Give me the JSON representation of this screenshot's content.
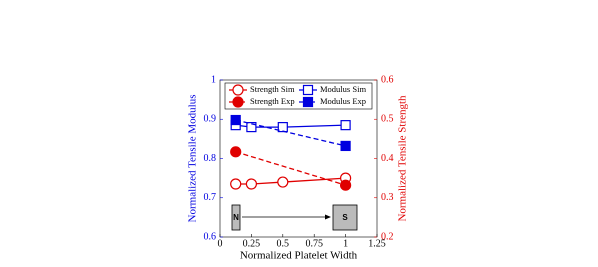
{
  "chart_data": {
    "type": "line",
    "x_label": "Normalized Platelet Width",
    "y_label": "Normalized Tensile Modulus",
    "y2_label": "Normalized Tensile Strength",
    "annotations": [
      "N",
      "S"
    ],
    "xlim": [
      0,
      1.25
    ],
    "xticks": [
      0,
      0.25,
      0.5,
      0.75,
      1,
      1.25
    ],
    "ylim": [
      0.6,
      1
    ],
    "yticks": [
      0.6,
      0.7,
      0.8,
      0.9,
      1
    ],
    "y2lim": [
      0.2,
      0.6
    ],
    "y2ticks": [
      0.2,
      0.3,
      0.4,
      0.5,
      0.6
    ],
    "y_color": "#0000e0",
    "y2_color": "#e00000",
    "series": [
      {
        "name": "Strength Sim",
        "color": "#e00000",
        "axis": "y2",
        "marker": "circle",
        "filled": false,
        "dashed": false,
        "x": [
          0.125,
          0.25,
          0.5,
          1
        ],
        "values": [
          0.335,
          0.335,
          0.34,
          0.35
        ]
      },
      {
        "name": "Strength Exp",
        "color": "#e00000",
        "axis": "y2",
        "marker": "circle",
        "filled": true,
        "dashed": true,
        "x": [
          0.125,
          1
        ],
        "values": [
          0.417,
          0.332
        ]
      },
      {
        "name": "Modulus Sim",
        "color": "#0000e0",
        "axis": "y",
        "marker": "square",
        "filled": false,
        "dashed": false,
        "x": [
          0.125,
          0.25,
          0.5,
          1
        ],
        "values": [
          0.885,
          0.88,
          0.88,
          0.885
        ]
      },
      {
        "name": "Modulus Exp",
        "color": "#0000e0",
        "axis": "y",
        "marker": "square",
        "filled": true,
        "dashed": true,
        "x": [
          0.125,
          1
        ],
        "values": [
          0.898,
          0.832
        ]
      }
    ]
  }
}
